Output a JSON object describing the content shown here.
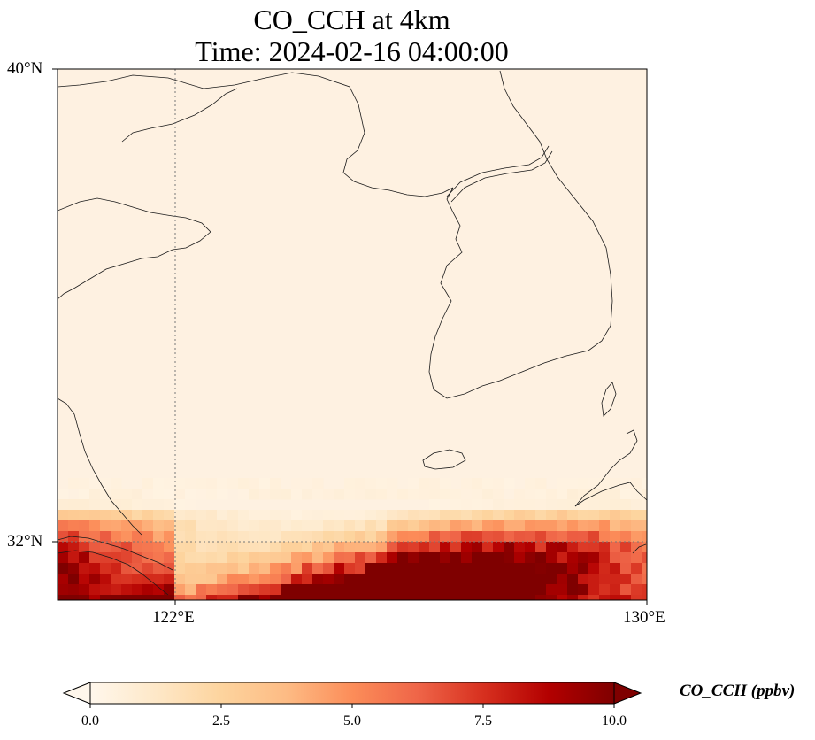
{
  "title": {
    "line1": "CO_CCH at 4km",
    "line2": "Time: 2024-02-16 04:00:00"
  },
  "map": {
    "lon_range": [
      120,
      130
    ],
    "lat_range": [
      31,
      40
    ],
    "gridlines": "dotted",
    "lat_ticks": [
      {
        "value": 40,
        "label": "40°N"
      },
      {
        "value": 32,
        "label": "32°N"
      }
    ],
    "lon_ticks": [
      {
        "value": 122,
        "label": "122°E"
      },
      {
        "value": 130,
        "label": "130°E"
      }
    ],
    "coastline_color": "#000000",
    "gridline_color": "#777777"
  },
  "colorbar": {
    "label": "CO_CCH (ppbv)",
    "min": 0.0,
    "max": 10.0,
    "extend": "both",
    "colormap": "OrRd",
    "colors": [
      "#fff7ec",
      "#fee8c8",
      "#fdd49e",
      "#fdbb84",
      "#fc8d59",
      "#ef6548",
      "#d7301f",
      "#b30000",
      "#7f0000"
    ],
    "ticks": [
      "0.0",
      "2.5",
      "5.0",
      "7.5",
      "10.0"
    ]
  }
}
